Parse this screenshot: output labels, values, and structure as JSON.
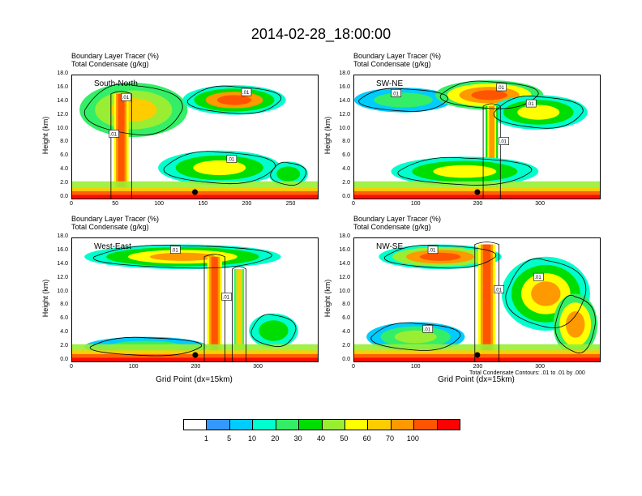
{
  "figure": {
    "title": "2014-02-28_18:00:00",
    "subtitle_line1": "Boundary Layer Tracer",
    "subtitle_unit1": "(%)",
    "subtitle_line2": "Total Condensate",
    "subtitle_unit2": "(g/kg)",
    "ylabel": "Height (km)",
    "xlabel": "Grid Point (dx=15km)",
    "contour_note": "Total Condensate Contours: .01 to .01 by .000"
  },
  "colors": {
    "levels": [
      "#ffffff",
      "#3399ff",
      "#00ccff",
      "#00ffcc",
      "#33ee66",
      "#00dd00",
      "#99ee33",
      "#ffff00",
      "#ffcc00",
      "#ff9900",
      "#ff5500",
      "#ff0000"
    ]
  },
  "chart_data": [
    {
      "type": "heatmap",
      "name": "cross-section",
      "label": "South-North",
      "xlim": [
        0,
        280
      ],
      "ylim": [
        0,
        18
      ],
      "xticks": [
        "0",
        "50",
        "100",
        "150",
        "200",
        "250"
      ],
      "xtick_values": [
        0,
        50,
        100,
        150,
        200,
        250
      ],
      "yticks": [
        "0.0",
        "2.0",
        "4.0",
        "6.0",
        "8.0",
        "10.0",
        "12.0",
        "14.0",
        "16.0",
        "18.0"
      ],
      "marker_x": 140,
      "contour_labels": [
        ".01",
        ".01",
        ".01",
        ".01"
      ]
    },
    {
      "type": "heatmap",
      "name": "cross-section",
      "label": "SW-NE",
      "xlim": [
        0,
        395
      ],
      "ylim": [
        0,
        18
      ],
      "xticks": [
        "0",
        "100",
        "200",
        "300"
      ],
      "xtick_values": [
        0,
        100,
        200,
        300
      ],
      "yticks": [
        "0.0",
        "2.0",
        "4.0",
        "6.0",
        "8.0",
        "10.0",
        "12.0",
        "14.0",
        "16.0",
        "18.0"
      ],
      "marker_x": 198,
      "contour_labels": [
        ".01",
        ".01",
        ".01",
        ".01"
      ]
    },
    {
      "type": "heatmap",
      "name": "cross-section",
      "label": "West-East",
      "xlim": [
        0,
        395
      ],
      "ylim": [
        0,
        18
      ],
      "xticks": [
        "0",
        "100",
        "200",
        "300"
      ],
      "xtick_values": [
        0,
        100,
        200,
        300
      ],
      "yticks": [
        "0.0",
        "2.0",
        "4.0",
        "6.0",
        "8.0",
        "10.0",
        "12.0",
        "14.0",
        "16.0",
        "18.0"
      ],
      "marker_x": 198,
      "contour_labels": [
        ".01",
        ".01"
      ]
    },
    {
      "type": "heatmap",
      "name": "cross-section",
      "label": "NW-SE",
      "xlim": [
        0,
        395
      ],
      "ylim": [
        0,
        18
      ],
      "xticks": [
        "0",
        "100",
        "200",
        "300"
      ],
      "xtick_values": [
        0,
        100,
        200,
        300
      ],
      "yticks": [
        "0.0",
        "2.0",
        "4.0",
        "6.0",
        "8.0",
        "10.0",
        "12.0",
        "14.0",
        "16.0",
        "18.0"
      ],
      "marker_x": 198,
      "contour_labels": [
        ".01",
        ".01",
        ".01",
        ".01"
      ]
    }
  ],
  "colorbar": {
    "labels": [
      "1",
      "5",
      "10",
      "20",
      "30",
      "40",
      "50",
      "60",
      "70",
      "100"
    ]
  }
}
